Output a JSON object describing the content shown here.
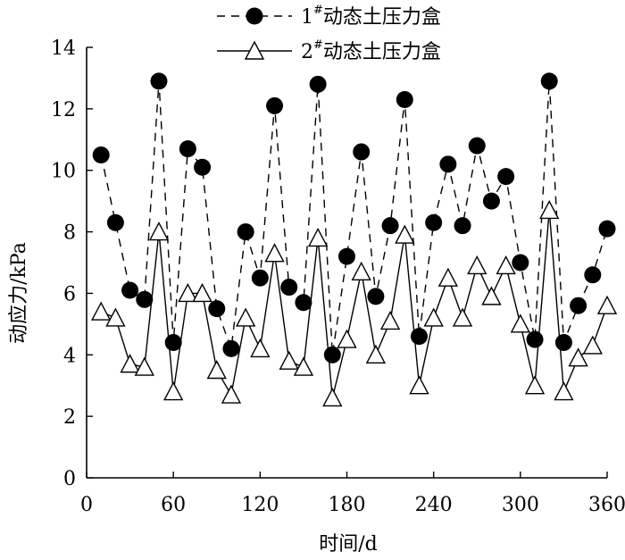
{
  "chart_data": {
    "type": "line",
    "xlabel": "时间/d",
    "ylabel": "动应力/kPa",
    "xlim": [
      0,
      360
    ],
    "ylim": [
      0,
      14
    ],
    "xticks": [
      0,
      60,
      120,
      180,
      240,
      300,
      360
    ],
    "yticks": [
      0,
      2,
      4,
      6,
      8,
      10,
      12,
      14
    ],
    "grid": false,
    "legend_position": "top-center",
    "series": [
      {
        "name": "1#动态土压力盒",
        "name_base": "1",
        "name_sup": "#",
        "name_rest": "动态土压力盒",
        "marker": "filled-circle",
        "line": "dashed",
        "x": [
          10,
          20,
          30,
          40,
          50,
          60,
          70,
          80,
          90,
          100,
          110,
          120,
          130,
          140,
          150,
          160,
          170,
          180,
          190,
          200,
          210,
          220,
          230,
          240,
          250,
          260,
          270,
          280,
          290,
          300,
          310,
          320,
          330,
          340,
          350,
          360
        ],
        "values": [
          10.5,
          8.3,
          6.1,
          5.8,
          12.9,
          4.4,
          10.7,
          10.1,
          5.5,
          4.2,
          8.0,
          6.5,
          12.1,
          6.2,
          5.7,
          12.8,
          4.0,
          7.2,
          10.6,
          5.9,
          8.2,
          12.3,
          4.6,
          8.3,
          10.2,
          8.2,
          10.8,
          9.0,
          9.8,
          7.0,
          4.5,
          12.9,
          4.4,
          5.6,
          6.6,
          8.1
        ]
      },
      {
        "name": "2#动态土压力盒",
        "name_base": "2",
        "name_sup": "#",
        "name_rest": "动态土压力盒",
        "marker": "open-triangle",
        "line": "solid",
        "x": [
          10,
          20,
          30,
          40,
          50,
          60,
          70,
          80,
          90,
          100,
          110,
          120,
          130,
          140,
          150,
          160,
          170,
          180,
          190,
          200,
          210,
          220,
          230,
          240,
          250,
          260,
          270,
          280,
          290,
          300,
          310,
          320,
          330,
          340,
          350,
          360
        ],
        "values": [
          5.4,
          5.2,
          3.7,
          3.6,
          8.0,
          2.8,
          6.0,
          6.0,
          3.5,
          2.7,
          5.2,
          4.2,
          7.3,
          3.8,
          3.6,
          7.8,
          2.6,
          4.5,
          6.7,
          4.0,
          5.1,
          7.9,
          3.0,
          5.2,
          6.5,
          5.2,
          6.9,
          5.9,
          6.9,
          5.0,
          3.0,
          8.7,
          2.8,
          3.9,
          4.3,
          5.6
        ]
      }
    ]
  }
}
